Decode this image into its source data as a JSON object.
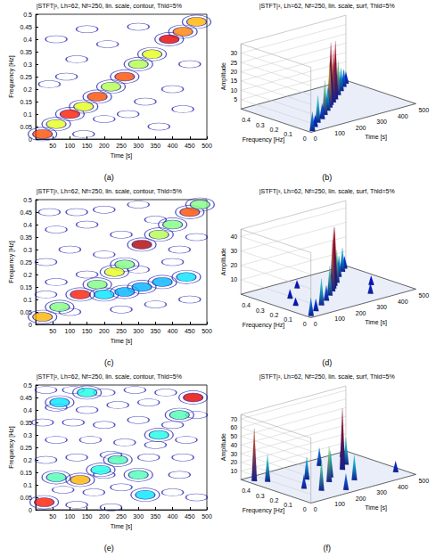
{
  "chart_data": [
    {
      "type": "contour",
      "panel_label": "(a)",
      "title": "|STFT|², Lh=62, Nf=250, lin. scale, contour, Thld=5%",
      "x_label": "Time [s]",
      "y_label": "Frequency [Hz]",
      "xlim": [
        0,
        500
      ],
      "xticks": [
        50,
        100,
        150,
        200,
        250,
        300,
        350,
        400,
        450,
        500
      ],
      "ylim": [
        0,
        0.5
      ],
      "yticks": [
        0,
        0.05,
        0.1,
        0.15,
        0.2,
        0.25,
        0.3,
        0.35,
        0.4,
        0.45,
        0.5
      ],
      "level_range": [
        0,
        1
      ],
      "ridge": [
        [
          20,
          0.02,
          0.8
        ],
        [
          60,
          0.06,
          0.6
        ],
        [
          100,
          0.1,
          0.85
        ],
        [
          140,
          0.13,
          0.6
        ],
        [
          180,
          0.17,
          0.8
        ],
        [
          220,
          0.21,
          0.55
        ],
        [
          260,
          0.25,
          0.8
        ],
        [
          300,
          0.3,
          0.55
        ],
        [
          340,
          0.34,
          0.6
        ],
        [
          390,
          0.4,
          0.9
        ],
        [
          430,
          0.43,
          0.75
        ],
        [
          470,
          0.47,
          0.7
        ]
      ],
      "noise": [
        [
          40,
          0.22
        ],
        [
          60,
          0.4
        ],
        [
          120,
          0.32
        ],
        [
          150,
          0.44
        ],
        [
          210,
          0.38
        ],
        [
          90,
          0.25
        ],
        [
          320,
          0.15
        ],
        [
          360,
          0.05
        ],
        [
          400,
          0.2
        ],
        [
          450,
          0.3
        ],
        [
          200,
          0.08
        ],
        [
          270,
          0.1
        ],
        [
          430,
          0.12
        ],
        [
          300,
          0.45
        ],
        [
          140,
          0.02
        ]
      ]
    },
    {
      "type": "surface",
      "panel_label": "(b)",
      "title": "|STFT|², Lh=62, Nf=250, lin. scale, surf, Thld=5%",
      "x_label": "Time [s]",
      "y_label": "Frequency [Hz]",
      "z_label": "Amplitude",
      "xlim": [
        0,
        500
      ],
      "xticks": [
        0,
        100,
        200,
        300,
        400,
        500
      ],
      "ylim": [
        0,
        0.5
      ],
      "yticks": [
        0,
        0.1,
        0.2,
        0.3,
        0.4
      ],
      "zlim": [
        0,
        35
      ],
      "zticks": [
        5,
        10,
        15,
        20,
        25,
        30
      ],
      "peaks": [
        [
          20,
          0.02,
          10
        ],
        [
          60,
          0.06,
          6
        ],
        [
          100,
          0.1,
          14
        ],
        [
          140,
          0.13,
          8
        ],
        [
          180,
          0.17,
          18
        ],
        [
          220,
          0.21,
          12
        ],
        [
          250,
          0.24,
          24
        ],
        [
          275,
          0.27,
          33
        ],
        [
          300,
          0.29,
          28
        ],
        [
          330,
          0.32,
          31
        ],
        [
          370,
          0.36,
          18
        ],
        [
          410,
          0.4,
          12
        ],
        [
          450,
          0.44,
          9
        ],
        [
          480,
          0.47,
          6
        ]
      ]
    },
    {
      "type": "contour",
      "panel_label": "(c)",
      "title": "|STFT|², Lh=62, Nf=250, lin. scale, contour, Thld=5%",
      "x_label": "Time [s]",
      "y_label": "Frequency [Hz]",
      "xlim": [
        0,
        500
      ],
      "xticks": [
        50,
        100,
        150,
        200,
        250,
        300,
        350,
        400,
        450,
        500
      ],
      "ylim": [
        0,
        0.5
      ],
      "yticks": [
        0,
        0.05,
        0.1,
        0.15,
        0.2,
        0.25,
        0.3,
        0.35,
        0.4,
        0.45,
        0.5
      ],
      "level_range": [
        0,
        1
      ],
      "ridge": [
        [
          20,
          0.03,
          0.7
        ],
        [
          70,
          0.07,
          0.5
        ],
        [
          130,
          0.12,
          0.85
        ],
        [
          180,
          0.16,
          0.5
        ],
        [
          230,
          0.21,
          0.6
        ],
        [
          260,
          0.24,
          0.5
        ],
        [
          310,
          0.32,
          0.95
        ],
        [
          360,
          0.36,
          0.55
        ],
        [
          400,
          0.4,
          0.5
        ],
        [
          450,
          0.45,
          0.8
        ],
        [
          480,
          0.48,
          0.5
        ],
        [
          200,
          0.12,
          0.35
        ],
        [
          260,
          0.13,
          0.3
        ],
        [
          310,
          0.15,
          0.3
        ],
        [
          370,
          0.17,
          0.3
        ],
        [
          440,
          0.19,
          0.35
        ]
      ],
      "noise": [
        [
          40,
          0.45
        ],
        [
          120,
          0.45
        ],
        [
          200,
          0.46
        ],
        [
          300,
          0.48
        ],
        [
          60,
          0.38
        ],
        [
          150,
          0.4
        ],
        [
          250,
          0.36
        ],
        [
          350,
          0.42
        ],
        [
          100,
          0.3
        ],
        [
          30,
          0.25
        ],
        [
          200,
          0.28
        ],
        [
          420,
          0.3
        ],
        [
          60,
          0.17
        ],
        [
          150,
          0.2
        ],
        [
          300,
          0.22
        ],
        [
          400,
          0.25
        ],
        [
          100,
          0.05
        ],
        [
          250,
          0.06
        ],
        [
          350,
          0.08
        ],
        [
          450,
          0.1
        ],
        [
          30,
          0.12
        ],
        [
          470,
          0.35
        ]
      ]
    },
    {
      "type": "surface",
      "panel_label": "(d)",
      "title": "|STFT|², Lh=62, Nf=250, lin. scale, surf, Thld=5%",
      "x_label": "Time [s]",
      "y_label": "Frequency [Hz]",
      "z_label": "Amplitude",
      "xlim": [
        0,
        500
      ],
      "xticks": [
        0,
        100,
        200,
        300,
        400,
        500
      ],
      "ylim": [
        0,
        0.5
      ],
      "yticks": [
        0,
        0.1,
        0.2,
        0.3,
        0.4
      ],
      "zlim": [
        0,
        45
      ],
      "zticks": [
        10,
        20,
        30,
        40
      ],
      "peaks": [
        [
          20,
          0.03,
          12
        ],
        [
          70,
          0.07,
          8
        ],
        [
          130,
          0.12,
          18
        ],
        [
          180,
          0.16,
          10
        ],
        [
          230,
          0.21,
          20
        ],
        [
          270,
          0.25,
          35
        ],
        [
          295,
          0.28,
          42
        ],
        [
          320,
          0.31,
          40
        ],
        [
          350,
          0.34,
          22
        ],
        [
          400,
          0.4,
          14
        ],
        [
          450,
          0.45,
          16
        ],
        [
          480,
          0.48,
          8
        ],
        [
          100,
          0.3,
          6
        ],
        [
          200,
          0.4,
          5
        ],
        [
          350,
          0.1,
          7
        ],
        [
          420,
          0.2,
          6
        ],
        [
          60,
          0.2,
          5
        ]
      ]
    },
    {
      "type": "contour",
      "panel_label": "(e)",
      "title": "|STFT|², Lh=62, Nf=250, lin. scale, contour, Thld=5%",
      "x_label": "Time [s]",
      "y_label": "Frequency [Hz]",
      "xlim": [
        0,
        500
      ],
      "xticks": [
        50,
        100,
        150,
        200,
        250,
        300,
        350,
        400,
        450,
        500
      ],
      "ylim": [
        0,
        0.5
      ],
      "yticks": [
        0,
        0.05,
        0.1,
        0.15,
        0.2,
        0.25,
        0.3,
        0.35,
        0.4,
        0.45,
        0.5
      ],
      "level_range": [
        0,
        1
      ],
      "ridge": [
        [
          25,
          0.03,
          0.85
        ],
        [
          130,
          0.12,
          0.7
        ],
        [
          190,
          0.16,
          0.4
        ],
        [
          240,
          0.2,
          0.45
        ],
        [
          300,
          0.14,
          0.45
        ],
        [
          360,
          0.3,
          0.4
        ],
        [
          420,
          0.38,
          0.45
        ],
        [
          460,
          0.45,
          0.9
        ],
        [
          150,
          0.47,
          0.4
        ],
        [
          70,
          0.43,
          0.35
        ],
        [
          320,
          0.06,
          0.35
        ],
        [
          60,
          0.13,
          0.45
        ]
      ],
      "noise": [
        [
          30,
          0.48
        ],
        [
          110,
          0.48
        ],
        [
          200,
          0.47
        ],
        [
          290,
          0.48
        ],
        [
          380,
          0.47
        ],
        [
          60,
          0.41
        ],
        [
          150,
          0.4
        ],
        [
          240,
          0.42
        ],
        [
          330,
          0.43
        ],
        [
          20,
          0.35
        ],
        [
          110,
          0.35
        ],
        [
          200,
          0.34
        ],
        [
          300,
          0.36
        ],
        [
          400,
          0.34
        ],
        [
          470,
          0.38
        ],
        [
          60,
          0.28
        ],
        [
          160,
          0.28
        ],
        [
          260,
          0.27
        ],
        [
          350,
          0.26
        ],
        [
          440,
          0.28
        ],
        [
          30,
          0.2
        ],
        [
          120,
          0.21
        ],
        [
          220,
          0.22
        ],
        [
          330,
          0.21
        ],
        [
          430,
          0.21
        ],
        [
          80,
          0.08
        ],
        [
          170,
          0.07
        ],
        [
          250,
          0.09
        ],
        [
          400,
          0.07
        ],
        [
          470,
          0.05
        ],
        [
          120,
          0.02
        ],
        [
          220,
          0.01
        ],
        [
          420,
          0.14
        ],
        [
          200,
          0.14
        ]
      ]
    },
    {
      "type": "surface",
      "panel_label": "(f)",
      "title": "|STFT|², Lh=62, Nf=250, lin. scale, surf, Thld=5%",
      "x_label": "Time [s]",
      "y_label": "Frequency [Hz]",
      "z_label": "Amplitude",
      "xlim": [
        0,
        500
      ],
      "xticks": [
        0,
        100,
        200,
        300,
        400,
        500
      ],
      "ylim": [
        0,
        0.5
      ],
      "yticks": [
        0,
        0.1,
        0.2,
        0.3,
        0.4
      ],
      "zlim": [
        0,
        75
      ],
      "zticks": [
        10,
        20,
        30,
        40,
        50,
        60,
        70
      ],
      "peaks": [
        [
          30,
          0.45,
          60
        ],
        [
          60,
          0.4,
          30
        ],
        [
          130,
          0.12,
          35
        ],
        [
          180,
          0.3,
          25
        ],
        [
          220,
          0.2,
          40
        ],
        [
          260,
          0.25,
          30
        ],
        [
          300,
          0.14,
          28
        ],
        [
          350,
          0.3,
          70
        ],
        [
          400,
          0.35,
          30
        ],
        [
          450,
          0.45,
          25
        ],
        [
          100,
          0.2,
          15
        ],
        [
          200,
          0.05,
          18
        ],
        [
          470,
          0.1,
          12
        ],
        [
          320,
          0.42,
          20
        ]
      ]
    }
  ]
}
